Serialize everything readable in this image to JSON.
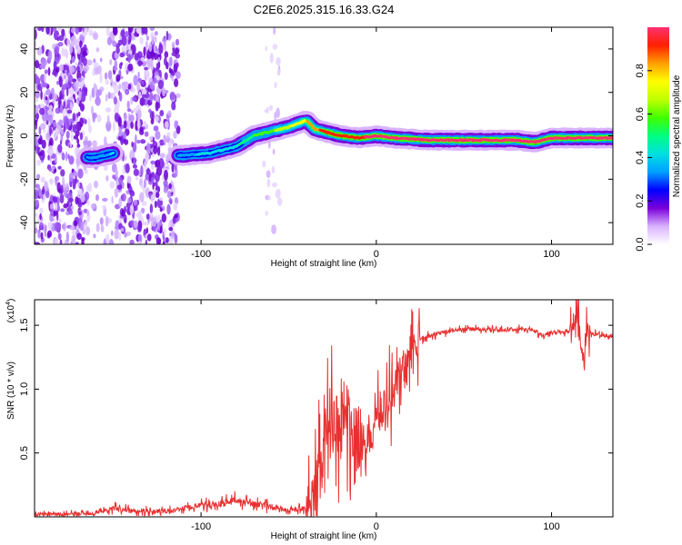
{
  "title": "C2E6.2025.315.16.33.G24",
  "chart_data": [
    {
      "type": "heatmap",
      "name": "spectrogram",
      "xlabel": "Height of straight line (km)",
      "ylabel": "Frequency (Hz)",
      "xlim": [
        -195,
        135
      ],
      "ylim": [
        -50,
        50
      ],
      "xticks": [
        -100,
        0,
        100
      ],
      "xtick_labels": [
        "-100",
        "0",
        "100"
      ],
      "yticks": [
        -40,
        -20,
        0,
        20,
        40
      ],
      "ytick_labels": [
        "-40",
        "-20",
        "0",
        "20",
        "40"
      ],
      "ridge": {
        "x": [
          -160,
          -145,
          -110,
          -95,
          -80,
          -70,
          -60,
          -50,
          -40,
          -35,
          -30,
          -20,
          -10,
          0,
          10,
          30,
          60,
          80,
          90,
          100,
          120,
          135
        ],
        "freq": [
          -10,
          -7,
          -9,
          -8,
          -5,
          0,
          2,
          4,
          7,
          3,
          2,
          0,
          -1,
          0,
          -1,
          -2,
          -2,
          -2,
          -3,
          -1,
          -1,
          -1
        ],
        "amplitude": [
          0.35,
          0.4,
          0.35,
          0.4,
          0.45,
          0.55,
          0.6,
          0.7,
          0.8,
          0.85,
          0.9,
          0.95,
          0.95,
          0.98,
          1.0,
          1.0,
          1.0,
          1.0,
          1.0,
          1.0,
          1.0,
          1.0
        ]
      },
      "colorbar": {
        "label": "Normalized spectral amplitude",
        "range": [
          0,
          1
        ],
        "ticks": [
          0.0,
          0.2,
          0.4,
          0.6,
          0.8
        ],
        "tick_labels": [
          "0.0",
          "0.2",
          "0.4",
          "0.6",
          "0.8"
        ],
        "colors": [
          "#ffffff",
          "#d9b3ff",
          "#7a00d9",
          "#0000ff",
          "#00a0ff",
          "#00e0e0",
          "#00ff80",
          "#40ff00",
          "#c0ff00",
          "#ffff00",
          "#ffa000",
          "#ff2000",
          "#ff3070"
        ]
      }
    },
    {
      "type": "line",
      "name": "snr",
      "xlabel": "Height of straight line (km)",
      "ylabel": "SNR (10 * v/v)",
      "y_multiplier": "(x10",
      "y_multiplier_exp": "4",
      "y_multiplier_close": ")",
      "xlim": [
        -195,
        135
      ],
      "ylim": [
        0,
        1.7
      ],
      "xticks": [
        -100,
        0,
        100
      ],
      "xtick_labels": [
        "-100",
        "0",
        "100"
      ],
      "yticks": [
        0.5,
        1.0,
        1.5
      ],
      "ytick_labels": [
        "0.5",
        "1.0",
        "1.5"
      ],
      "color": "#e83030",
      "series": [
        {
          "name": "SNR",
          "x": [
            -195,
            -180,
            -160,
            -150,
            -140,
            -120,
            -105,
            -90,
            -80,
            -70,
            -60,
            -50,
            -40,
            -35,
            -32,
            -30,
            -27,
            -25,
            -22,
            -20,
            -18,
            -15,
            -10,
            -5,
            0,
            5,
            10,
            15,
            20,
            25,
            30,
            40,
            50,
            60,
            70,
            80,
            90,
            95,
            100,
            110,
            115,
            118,
            120,
            125,
            135
          ],
          "y": [
            0.02,
            0.02,
            0.03,
            0.07,
            0.05,
            0.04,
            0.08,
            0.1,
            0.13,
            0.1,
            0.08,
            0.05,
            0.07,
            0.16,
            0.35,
            0.55,
            0.75,
            0.85,
            0.7,
            0.72,
            0.9,
            0.7,
            0.55,
            0.62,
            0.75,
            0.9,
            1.0,
            1.15,
            1.28,
            1.38,
            1.42,
            1.45,
            1.47,
            1.47,
            1.46,
            1.47,
            1.46,
            1.42,
            1.45,
            1.45,
            1.5,
            1.25,
            1.45,
            1.43,
            1.41
          ]
        }
      ]
    }
  ]
}
